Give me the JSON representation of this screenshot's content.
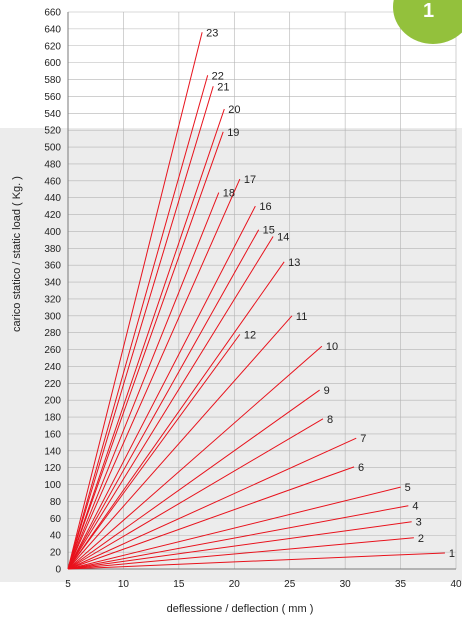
{
  "badge": {
    "label": "1",
    "color": "#93c13c"
  },
  "colors": {
    "line": "#e8121c",
    "band": "#ececec",
    "grid": "#b4b4b4"
  },
  "chart_data": {
    "type": "line",
    "xlabel": "deflessione / deflection ( mm )",
    "ylabel": "carico statico / static load ( Kg. )",
    "xlim": [
      5,
      40
    ],
    "ylim": [
      0,
      660
    ],
    "xticks": [
      5,
      10,
      15,
      20,
      25,
      30,
      35,
      40
    ],
    "yticks": [
      0,
      20,
      40,
      60,
      80,
      100,
      120,
      140,
      160,
      180,
      200,
      220,
      240,
      260,
      280,
      300,
      320,
      340,
      360,
      380,
      400,
      420,
      440,
      460,
      480,
      500,
      520,
      540,
      560,
      580,
      600,
      620,
      640,
      660
    ],
    "grid": true,
    "series": [
      {
        "name": "1",
        "end": [
          39.0,
          19
        ]
      },
      {
        "name": "2",
        "end": [
          36.2,
          37
        ]
      },
      {
        "name": "3",
        "end": [
          36.0,
          56
        ]
      },
      {
        "name": "4",
        "end": [
          35.7,
          75
        ]
      },
      {
        "name": "5",
        "end": [
          35.0,
          97
        ]
      },
      {
        "name": "6",
        "end": [
          30.8,
          121
        ]
      },
      {
        "name": "7",
        "end": [
          31.0,
          155
        ]
      },
      {
        "name": "8",
        "end": [
          28.0,
          178
        ]
      },
      {
        "name": "9",
        "end": [
          27.7,
          212
        ]
      },
      {
        "name": "10",
        "end": [
          27.9,
          264
        ]
      },
      {
        "name": "11",
        "end": [
          25.2,
          300
        ]
      },
      {
        "name": "12",
        "end": [
          20.5,
          278
        ]
      },
      {
        "name": "13",
        "end": [
          24.5,
          364
        ]
      },
      {
        "name": "14",
        "end": [
          23.5,
          394
        ]
      },
      {
        "name": "15",
        "end": [
          22.2,
          402
        ]
      },
      {
        "name": "16",
        "end": [
          21.9,
          430
        ]
      },
      {
        "name": "17",
        "end": [
          20.5,
          462
        ]
      },
      {
        "name": "18",
        "end": [
          18.6,
          446
        ]
      },
      {
        "name": "19",
        "end": [
          19.0,
          518
        ]
      },
      {
        "name": "20",
        "end": [
          19.1,
          545
        ]
      },
      {
        "name": "21",
        "end": [
          18.1,
          572
        ]
      },
      {
        "name": "22",
        "end": [
          17.6,
          585
        ]
      },
      {
        "name": "23",
        "end": [
          17.1,
          636
        ]
      }
    ],
    "start": [
      5,
      0
    ]
  }
}
